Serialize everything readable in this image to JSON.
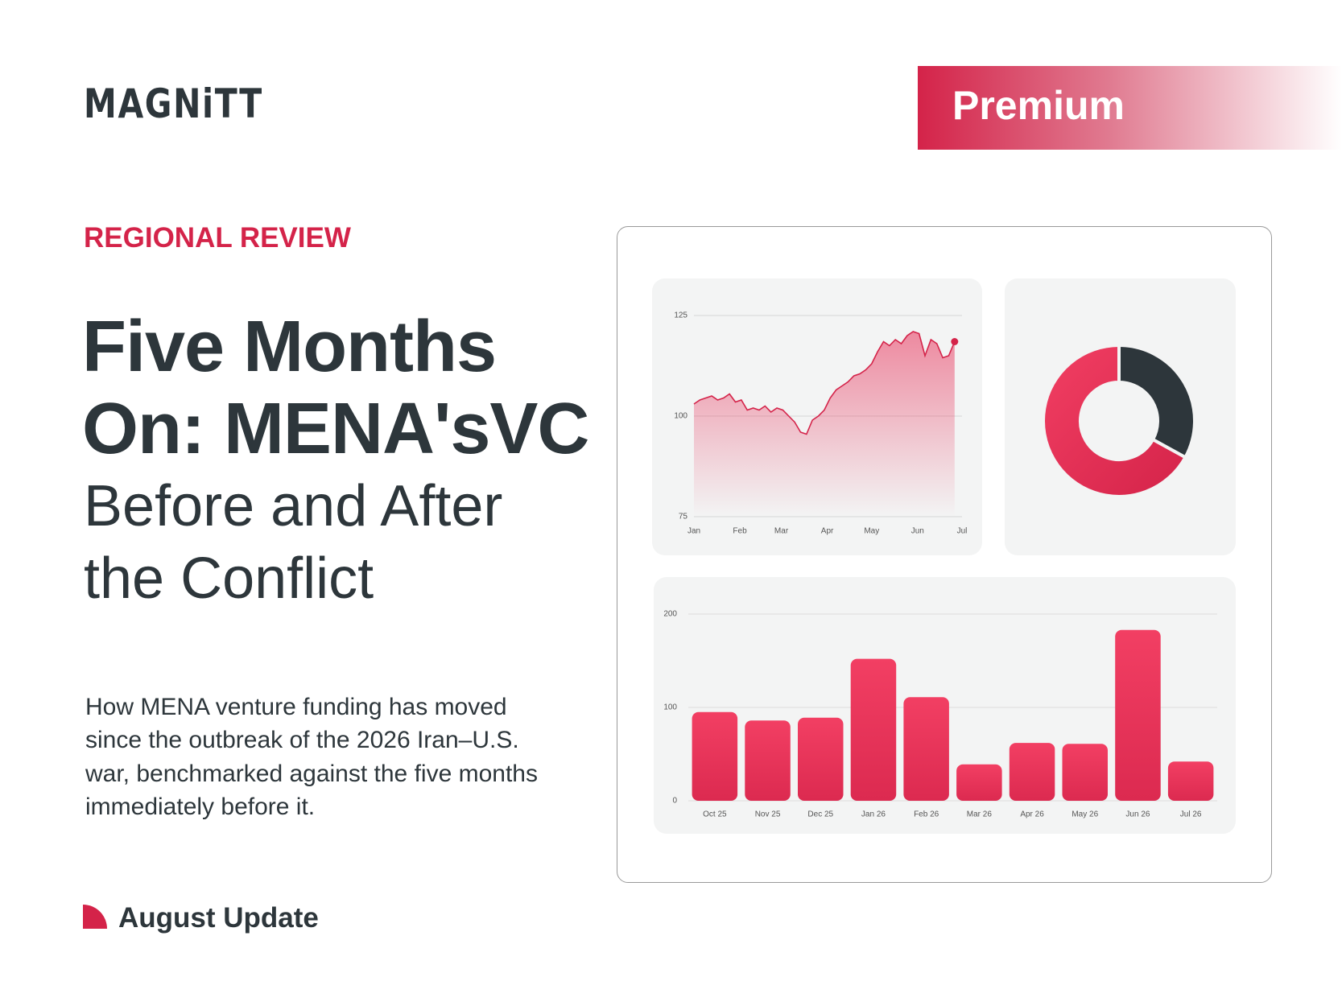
{
  "header": {
    "logo": "MAGNiTT",
    "badge": "Premium"
  },
  "eyebrow": "REGIONAL REVIEW",
  "title": {
    "bold_lines": [
      "Five Months",
      "On: MENA'sVC"
    ],
    "light_lines": [
      "Before and After",
      "the Conflict"
    ]
  },
  "description": [
    "How MENA venture funding has moved",
    "since the outbreak of the 2026 Iran–U.S.",
    "war, benchmarked against the five months",
    "immediately before it."
  ],
  "footer": "August Update",
  "chart_data": [
    {
      "type": "line",
      "x": [
        0,
        4,
        8,
        12,
        16,
        20,
        24,
        28,
        32,
        36,
        40,
        44,
        48,
        52,
        56,
        60,
        64,
        68,
        72,
        76,
        80,
        84,
        88,
        92,
        96,
        100,
        104,
        108,
        112,
        116,
        120,
        124,
        128,
        132,
        136,
        140,
        144,
        148,
        152,
        156,
        160,
        164,
        168,
        172,
        176
      ],
      "series": [
        {
          "color": "#d42349",
          "values": [
            103,
            104,
            104.5,
            105,
            104,
            104.5,
            105.5,
            103.5,
            104,
            101.5,
            102,
            101.5,
            102.5,
            101,
            102,
            101.5,
            100,
            98.5,
            96,
            95.5,
            99,
            100,
            101.5,
            104.5,
            106.5,
            107.5,
            108.5,
            110,
            110.5,
            111.5,
            113,
            116,
            118.5,
            117.5,
            119,
            118,
            120,
            121,
            120.5,
            115,
            119,
            118,
            114.5,
            115,
            118.5
          ]
        }
      ],
      "xlim": [
        0,
        181
      ],
      "xticks": [
        {
          "value": 0,
          "label": "Jan"
        },
        {
          "value": 31,
          "label": "Feb"
        },
        {
          "value": 59,
          "label": "Mar"
        },
        {
          "value": 90,
          "label": "Apr"
        },
        {
          "value": 120,
          "label": "May"
        },
        {
          "value": 151,
          "label": "Jun"
        },
        {
          "value": 181,
          "label": "Jul"
        }
      ],
      "ylim": [
        75,
        125
      ],
      "yticks": [
        75,
        100,
        125
      ],
      "grid": true
    },
    {
      "type": "pie",
      "values": [
        33,
        67
      ],
      "colors": [
        "#2d363b",
        "#e8325a"
      ],
      "donut": true
    },
    {
      "type": "bar",
      "categories": [
        "Oct 25",
        "Nov 25",
        "Dec 25",
        "Jan 26",
        "Feb 26",
        "Mar 26",
        "Apr 26",
        "May 26",
        "Jun 26",
        "Jul 26"
      ],
      "values": [
        95,
        86,
        89,
        152,
        111,
        39,
        62,
        61,
        183,
        42
      ],
      "color": "#e8325a",
      "ylim": [
        0,
        200
      ],
      "yticks": [
        0,
        100,
        200
      ],
      "grid": true
    }
  ]
}
